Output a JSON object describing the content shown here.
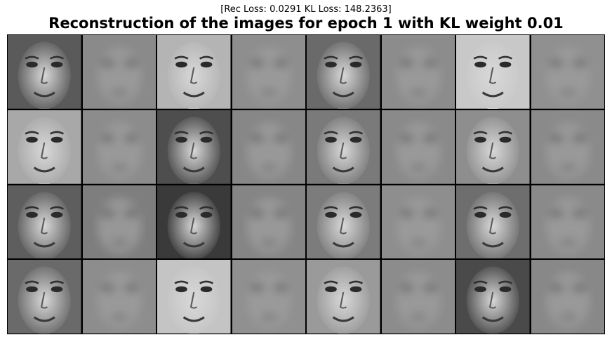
{
  "header": {
    "subtitle": "[Rec Loss: 0.0291 KL Loss: 148.2363]",
    "title": "Reconstruction of the images for epoch 1 with KL weight 0.01"
  },
  "grid": {
    "rows": 4,
    "columns": 8,
    "cells": [
      {
        "kind": "original",
        "tone": "#5a5a5a"
      },
      {
        "kind": "reconstruction",
        "tone": "#8a8a8a"
      },
      {
        "kind": "original",
        "tone": "#b4b4b4"
      },
      {
        "kind": "reconstruction",
        "tone": "#8e8e8e"
      },
      {
        "kind": "original",
        "tone": "#6a6a6a"
      },
      {
        "kind": "reconstruction",
        "tone": "#8c8c8c"
      },
      {
        "kind": "original",
        "tone": "#c8c8c8"
      },
      {
        "kind": "reconstruction",
        "tone": "#909090"
      },
      {
        "kind": "original",
        "tone": "#a8a8a8"
      },
      {
        "kind": "reconstruction",
        "tone": "#8c8c8c"
      },
      {
        "kind": "original",
        "tone": "#4e4e4e"
      },
      {
        "kind": "reconstruction",
        "tone": "#878787"
      },
      {
        "kind": "original",
        "tone": "#7a7a7a"
      },
      {
        "kind": "reconstruction",
        "tone": "#8a8a8a"
      },
      {
        "kind": "original",
        "tone": "#8e8e8e"
      },
      {
        "kind": "reconstruction",
        "tone": "#8a8a8a"
      },
      {
        "kind": "original",
        "tone": "#5e5e5e"
      },
      {
        "kind": "reconstruction",
        "tone": "#7e7e7e"
      },
      {
        "kind": "original",
        "tone": "#3a3a3a"
      },
      {
        "kind": "reconstruction",
        "tone": "#858585"
      },
      {
        "kind": "original",
        "tone": "#7c7c7c"
      },
      {
        "kind": "reconstruction",
        "tone": "#8e8e8e"
      },
      {
        "kind": "original",
        "tone": "#6e6e6e"
      },
      {
        "kind": "reconstruction",
        "tone": "#8a8a8a"
      },
      {
        "kind": "original",
        "tone": "#6a6a6a"
      },
      {
        "kind": "reconstruction",
        "tone": "#8d8d8d"
      },
      {
        "kind": "original",
        "tone": "#c4c4c4"
      },
      {
        "kind": "reconstruction",
        "tone": "#909090"
      },
      {
        "kind": "original",
        "tone": "#9a9a9a"
      },
      {
        "kind": "reconstruction",
        "tone": "#8c8c8c"
      },
      {
        "kind": "original",
        "tone": "#4a4a4a"
      },
      {
        "kind": "reconstruction",
        "tone": "#888888"
      }
    ]
  }
}
